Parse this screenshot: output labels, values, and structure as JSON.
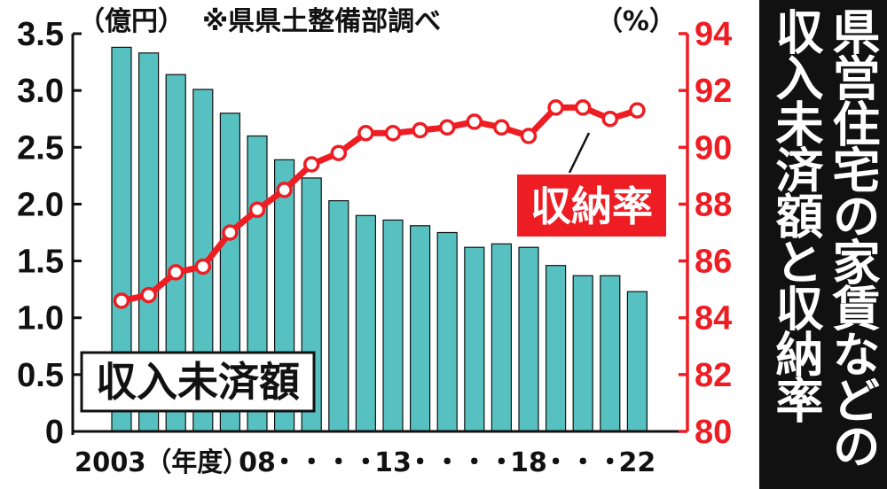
{
  "side_title": "県営住宅の家賃などの収入未済額と収納率",
  "colors": {
    "bar_fill": "#56C1C0",
    "bar_stroke": "#111111",
    "line": "#EE1D23",
    "right_axis": "#EE1D23",
    "left_axis": "#111111",
    "panel": "#111111"
  },
  "chart_data": {
    "type": "bar",
    "title": "",
    "source_note": "※県県土整備部調べ",
    "left_unit": "（億円）",
    "right_unit": "（%）",
    "x": [
      2003,
      2004,
      2005,
      2006,
      2007,
      2008,
      2009,
      2010,
      2011,
      2012,
      2013,
      2014,
      2015,
      2016,
      2017,
      2018,
      2019,
      2020,
      2021,
      2022
    ],
    "x_tick_labels": [
      {
        "x": 2003,
        "text": "2003（年度）"
      },
      {
        "x": 2008,
        "text": "08"
      },
      {
        "x": 2009,
        "text": "・"
      },
      {
        "x": 2010,
        "text": "・"
      },
      {
        "x": 2011,
        "text": "・"
      },
      {
        "x": 2012,
        "text": "・"
      },
      {
        "x": 2013,
        "text": "13"
      },
      {
        "x": 2014,
        "text": "・"
      },
      {
        "x": 2015,
        "text": "・"
      },
      {
        "x": 2016,
        "text": "・"
      },
      {
        "x": 2017,
        "text": "・"
      },
      {
        "x": 2018,
        "text": "18"
      },
      {
        "x": 2019,
        "text": "・"
      },
      {
        "x": 2020,
        "text": "・"
      },
      {
        "x": 2021,
        "text": "・"
      },
      {
        "x": 2022,
        "text": "22"
      }
    ],
    "series": [
      {
        "name": "収入未済額",
        "type": "bar",
        "axis": "left",
        "values": [
          3.38,
          3.33,
          3.14,
          3.01,
          2.8,
          2.6,
          2.39,
          2.23,
          2.03,
          1.9,
          1.86,
          1.81,
          1.75,
          1.62,
          1.65,
          1.62,
          1.46,
          1.37,
          1.37,
          1.23
        ]
      },
      {
        "name": "収納率",
        "type": "line",
        "axis": "right",
        "values": [
          84.6,
          84.8,
          85.6,
          85.8,
          87.0,
          87.8,
          88.5,
          89.4,
          89.8,
          90.5,
          90.5,
          90.6,
          90.7,
          90.9,
          90.7,
          90.4,
          91.4,
          91.4,
          91.0,
          91.3
        ]
      }
    ],
    "left_axis": {
      "ylim": [
        0,
        3.5
      ],
      "ticks": [
        "0",
        "0.5",
        "1.0",
        "1.5",
        "2.0",
        "2.5",
        "3.0",
        "3.5"
      ]
    },
    "right_axis": {
      "ylim": [
        80,
        94
      ],
      "ticks": [
        "80",
        "82",
        "84",
        "86",
        "88",
        "90",
        "92",
        "94"
      ]
    },
    "grid": false
  }
}
